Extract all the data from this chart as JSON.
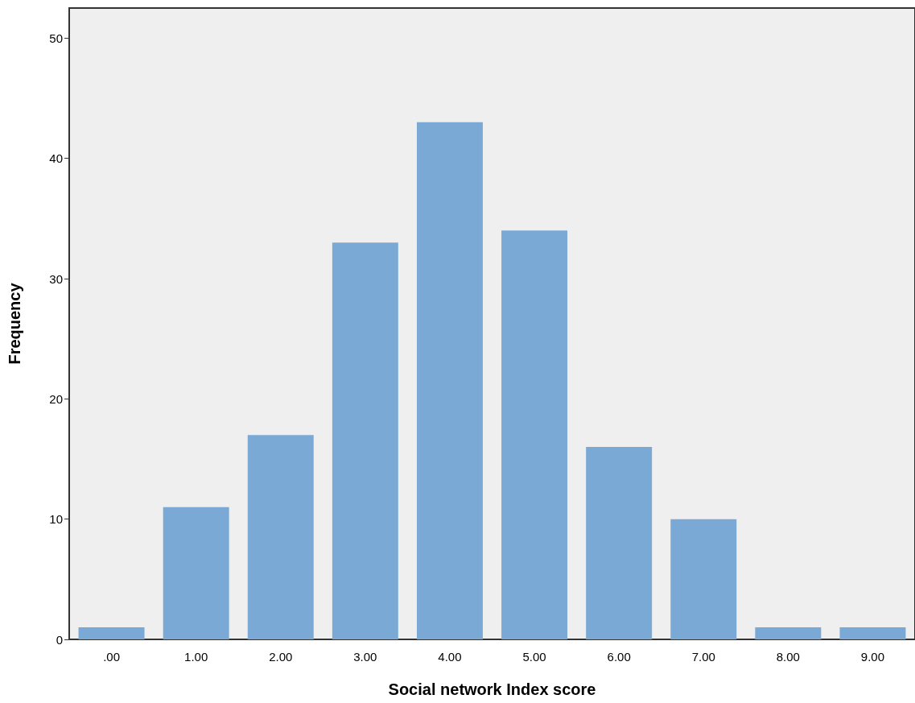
{
  "chart_data": {
    "type": "bar",
    "xlabel": "Social network Index score",
    "ylabel": "Frequency",
    "categories": [
      ".00",
      "1.00",
      "2.00",
      "3.00",
      "4.00",
      "5.00",
      "6.00",
      "7.00",
      "8.00",
      "9.00"
    ],
    "values": [
      1,
      11,
      17,
      33,
      43,
      34,
      16,
      10,
      1,
      1
    ],
    "color": "#7ba9d6",
    "ylim": [
      0,
      52.5
    ],
    "yticks": [
      0,
      10,
      20,
      30,
      40,
      50
    ],
    "grid": false
  }
}
